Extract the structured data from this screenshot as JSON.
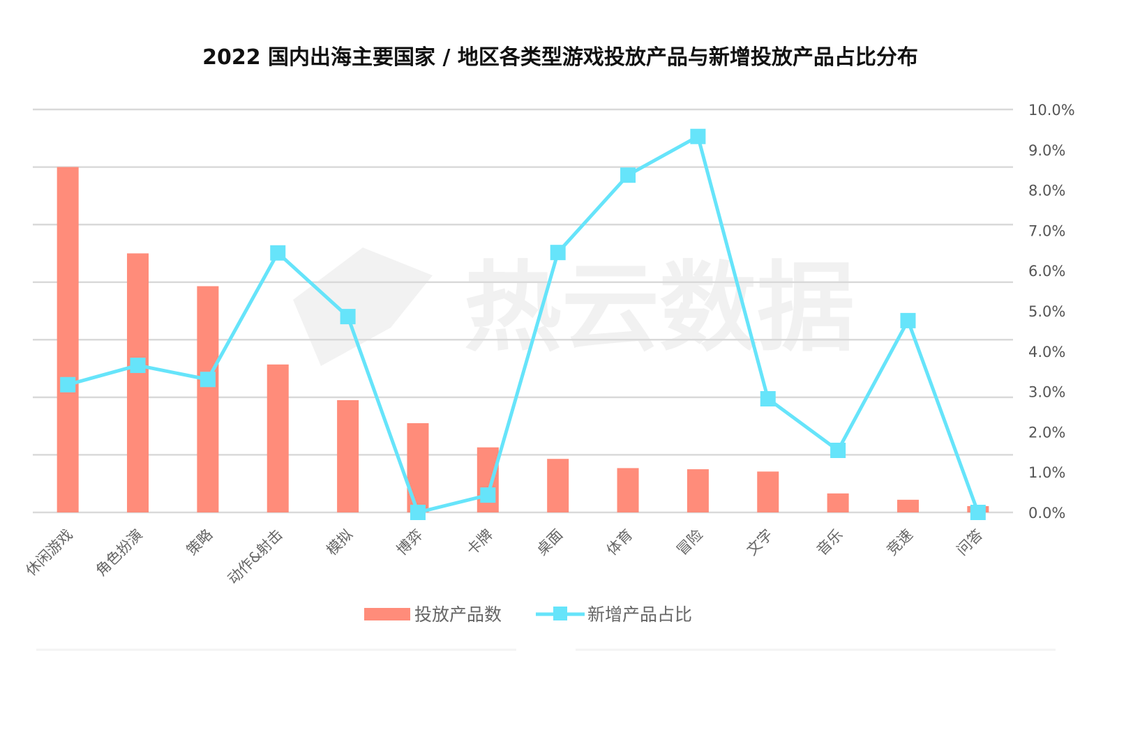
{
  "chart_data": {
    "type": "bar+line",
    "title": "2022 国内出海主要国家 / 地区各类型游戏投放产品与新增投放产品占比分布",
    "categories": [
      "休闲游戏",
      "角色扮演",
      "策略",
      "动作&射击",
      "模拟",
      "博弈",
      "卡牌",
      "桌面",
      "体育",
      "冒险",
      "文字",
      "音乐",
      "竞速",
      "问答"
    ],
    "series": [
      {
        "name": "投放产品数",
        "type": "bar",
        "axis": "left",
        "color": "#FF8C7A",
        "values": [
          6.0,
          4.5,
          3.93,
          2.57,
          1.95,
          1.55,
          1.13,
          0.93,
          0.77,
          0.75,
          0.71,
          0.33,
          0.22,
          0.11
        ]
      },
      {
        "name": "新增产品占比",
        "type": "line",
        "axis": "right",
        "color": "#66E4FA",
        "marker": "square",
        "values": [
          3.17,
          3.65,
          3.3,
          6.44,
          4.86,
          0.0,
          0.43,
          6.45,
          8.37,
          9.33,
          2.82,
          1.54,
          4.76,
          0.0
        ]
      }
    ],
    "left_axis": {
      "ylim": [
        0,
        7
      ],
      "tick_labels_shown": false
    },
    "right_axis": {
      "ylim": [
        0,
        10
      ],
      "unit": "%",
      "tick_labels": [
        "0.0%",
        "1.0%",
        "2.0%",
        "3.0%",
        "4.0%",
        "5.0%",
        "6.0%",
        "7.0%",
        "8.0%",
        "9.0%",
        "10.0%"
      ]
    },
    "grid": true,
    "legend": "bottom",
    "watermark": "热云数据"
  }
}
